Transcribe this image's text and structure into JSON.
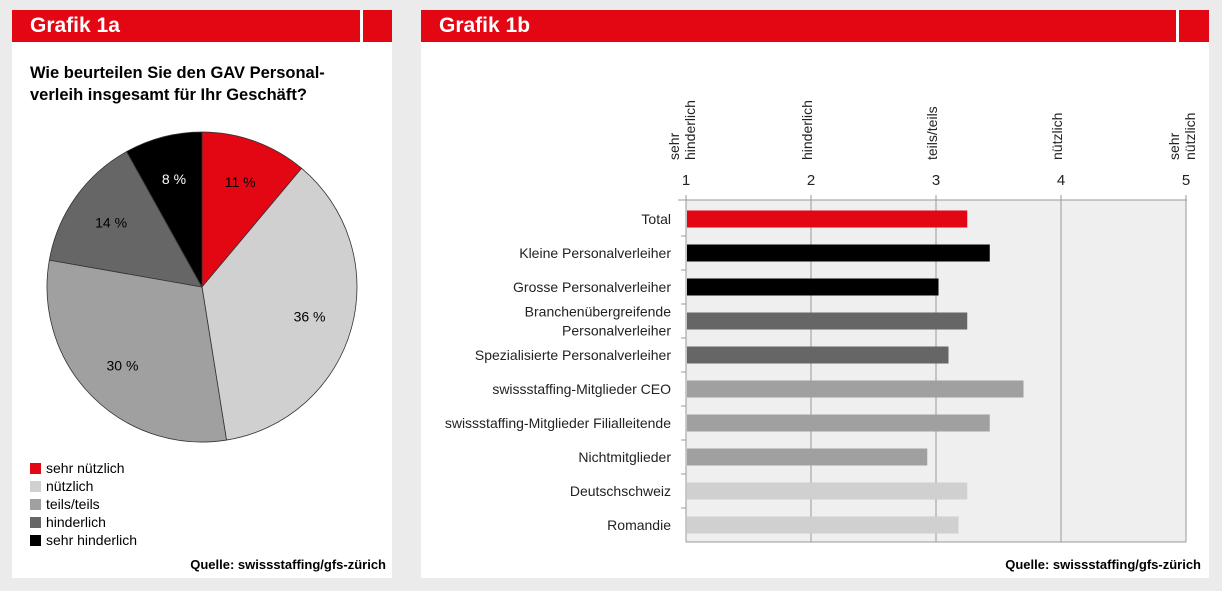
{
  "chart_data": [
    {
      "type": "pie",
      "header": "Grafik 1a",
      "title": "Wie beurteilen Sie den GAV Personal-verleih insgesamt für Ihr Geschäft?",
      "title_lines": [
        "Wie beurteilen Sie den GAV Personal-",
        "verleih insgesamt für Ihr Geschäft?"
      ],
      "slices": [
        {
          "label": "sehr nützlich",
          "value": 11,
          "display": "11 %",
          "color": "#e30613"
        },
        {
          "label": "nützlich",
          "value": 36,
          "display": "36 %",
          "color": "#d0d0d0"
        },
        {
          "label": "teils/teils",
          "value": 30,
          "display": "30 %",
          "color": "#a0a0a0"
        },
        {
          "label": "hinderlich",
          "value": 14,
          "display": "14 %",
          "color": "#666666"
        },
        {
          "label": "sehr hinderlich",
          "value": 8,
          "display": "8 %",
          "color": "#000000"
        }
      ],
      "legend_placement": "bottom-left",
      "source": "Quelle: swissstaffing/gfs-zürich"
    },
    {
      "type": "bar",
      "orientation": "horizontal",
      "header": "Grafik 1b",
      "xlim": [
        1,
        5
      ],
      "x_ticks": [
        "1",
        "2",
        "3",
        "4",
        "5"
      ],
      "x_tick_labels": [
        [
          "sehr",
          "hinderlich"
        ],
        [
          "hinderlich"
        ],
        [
          "teils/teils"
        ],
        [
          "nützlich"
        ],
        [
          "sehr",
          "nützlich"
        ]
      ],
      "grid": true,
      "categories": [
        {
          "label": [
            "Total"
          ],
          "value": 3.25,
          "color": "#e30613"
        },
        {
          "label": [
            "Kleine Personalverleiher"
          ],
          "value": 3.43,
          "color": "#000000"
        },
        {
          "label": [
            "Grosse Personalverleiher"
          ],
          "value": 3.02,
          "color": "#000000"
        },
        {
          "label": [
            "Branchenübergreifende",
            "Personalverleiher"
          ],
          "value": 3.25,
          "color": "#666666"
        },
        {
          "label": [
            "Spezialisierte Personalverleiher"
          ],
          "value": 3.1,
          "color": "#666666"
        },
        {
          "label": [
            "swissstaffing-Mitglieder CEO"
          ],
          "value": 3.7,
          "color": "#a0a0a0"
        },
        {
          "label": [
            "swissstaffing-Mitglieder Filialleitende"
          ],
          "value": 3.43,
          "color": "#a0a0a0"
        },
        {
          "label": [
            "Nichtmitglieder"
          ],
          "value": 2.93,
          "color": "#a0a0a0"
        },
        {
          "label": [
            "Deutschschweiz"
          ],
          "value": 3.25,
          "color": "#d0d0d0"
        },
        {
          "label": [
            "Romandie"
          ],
          "value": 3.18,
          "color": "#d0d0d0"
        }
      ],
      "source": "Quelle: swissstaffing/gfs-zürich"
    }
  ]
}
